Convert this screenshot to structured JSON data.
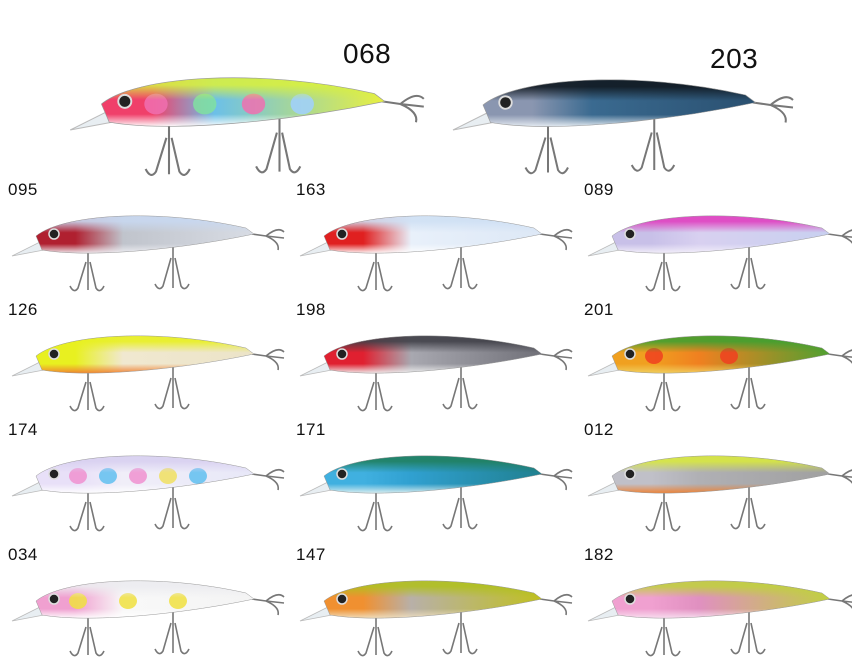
{
  "lures": [
    {
      "code": "068",
      "head": "#f0406a",
      "mid": "#6cc0e8",
      "tail": "#e8f040",
      "back": "#d8f040",
      "belly": "#ffffff",
      "spots": [
        "#f070b0",
        "#80e0a0",
        "#f070b0",
        "#a0d0ff"
      ]
    },
    {
      "code": "203",
      "head": "#8a96b0",
      "mid": "#3a6a90",
      "tail": "#2a5070",
      "back": "#101820",
      "belly": "#e8eef4",
      "spots": []
    },
    {
      "code": "095",
      "head": "#b02030",
      "mid": "#c0c4cc",
      "tail": "#d8dce4",
      "back": "#c8d8f0",
      "belly": "#f0f0f4",
      "spots": []
    },
    {
      "code": "163",
      "head": "#e02020",
      "mid": "#e8f0fa",
      "tail": "#dde8f6",
      "back": "#cfe0f4",
      "belly": "#ffffff",
      "spots": []
    },
    {
      "code": "089",
      "head": "#c8c0e8",
      "mid": "#d8d0f0",
      "tail": "#c8d0f0",
      "back": "#e040c0",
      "belly": "#f4f0fa",
      "spots": []
    },
    {
      "code": "126",
      "head": "#e8f020",
      "mid": "#f0e8d0",
      "tail": "#ece4c8",
      "back": "#e8f020",
      "belly": "#f08030",
      "spots": []
    },
    {
      "code": "198",
      "head": "#e02030",
      "mid": "#a8a8b0",
      "tail": "#707078",
      "back": "#404048",
      "belly": "#f0f0f0",
      "spots": []
    },
    {
      "code": "201",
      "head": "#f0a020",
      "mid": "#f08020",
      "tail": "#50a030",
      "back": "#40a030",
      "belly": "#f0d060",
      "spots": [
        "#f04020",
        "#f04020"
      ]
    },
    {
      "code": "174",
      "head": "#e8e0f8",
      "mid": "#f0eef8",
      "tail": "#e8e8f8",
      "back": "#d8d0f0",
      "belly": "#ffffff",
      "spots": [
        "#f090d0",
        "#60c0f0",
        "#f090d0",
        "#f0e060",
        "#60c0f0"
      ]
    },
    {
      "code": "171",
      "head": "#40b0e0",
      "mid": "#30a0d0",
      "tail": "#208090",
      "back": "#208060",
      "belly": "#e0f0f0",
      "spots": []
    },
    {
      "code": "012",
      "head": "#c0c0c8",
      "mid": "#b0b0b4",
      "tail": "#a0a0a0",
      "back": "#d8e840",
      "belly": "#f08030",
      "spots": []
    },
    {
      "code": "034",
      "head": "#f0a0d0",
      "mid": "#f8f8f8",
      "tail": "#f4f4f4",
      "back": "#ececf0",
      "belly": "#ffffff",
      "spots": [
        "#f0e040",
        "#f0e040",
        "#f0e040"
      ]
    },
    {
      "code": "147",
      "head": "#f09030",
      "mid": "#b8b0a8",
      "tail": "#c0c020",
      "back": "#b0c020",
      "belly": "#f0e0c0",
      "spots": []
    },
    {
      "code": "182",
      "head": "#f0a0d0",
      "mid": "#e090c0",
      "tail": "#c0d040",
      "back": "#c0d040",
      "belly": "#f8e0f0",
      "spots": []
    }
  ]
}
